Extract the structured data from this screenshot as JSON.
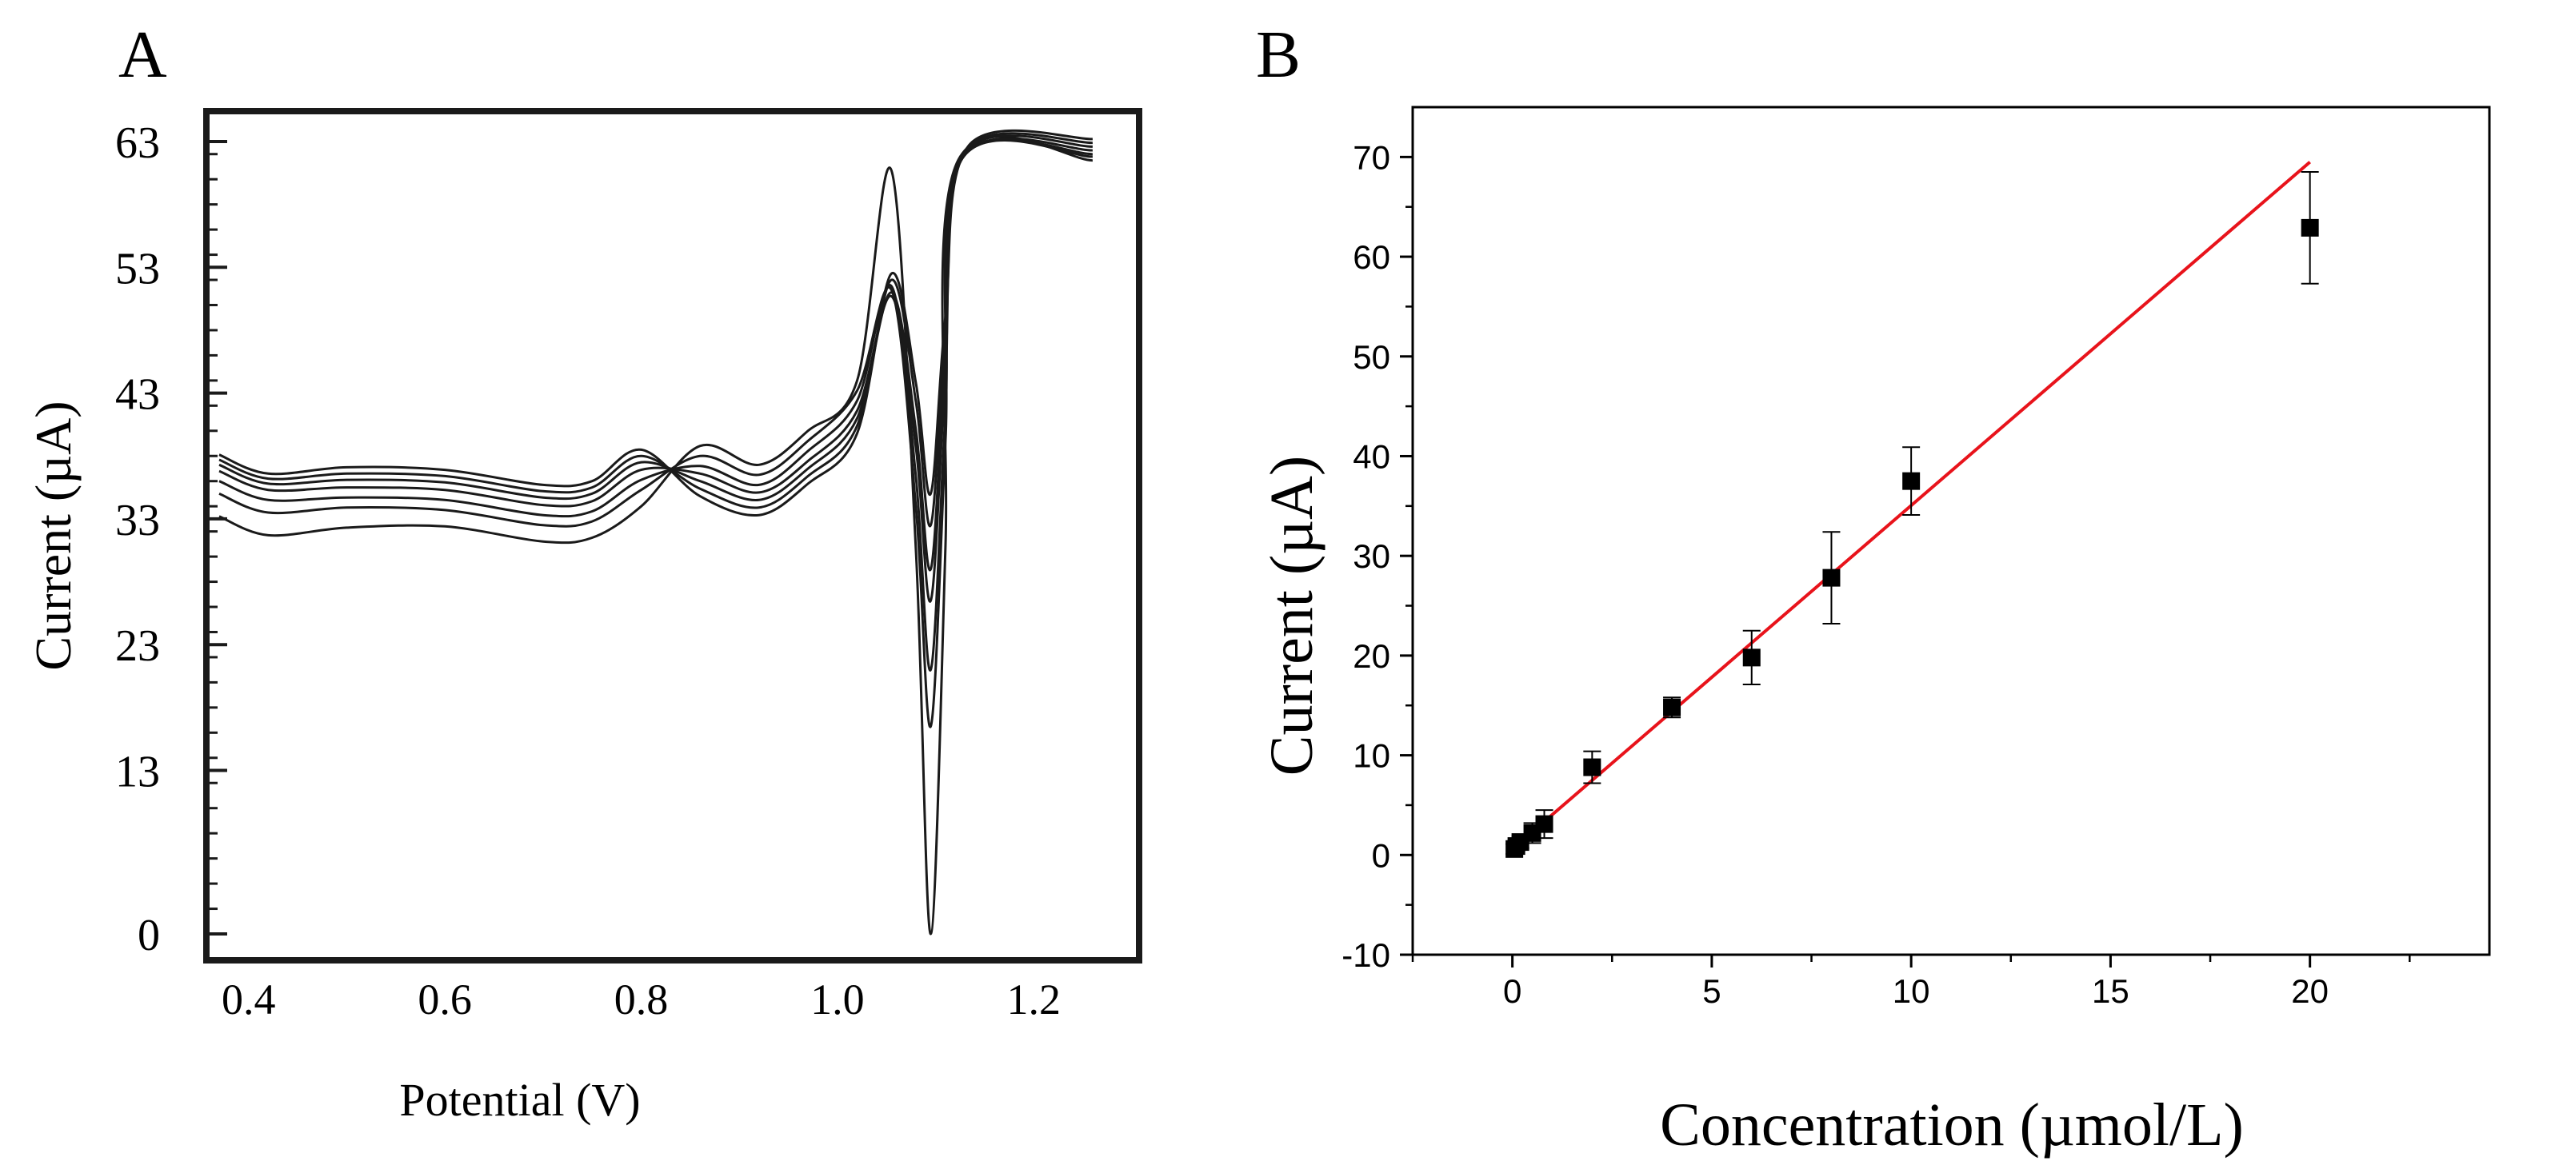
{
  "chart_data": [
    {
      "panel_label": "A",
      "type": "line",
      "title": "",
      "xlabel": "Potential (V)",
      "ylabel": "Current (µA)",
      "xlim": [
        0.37,
        1.3
      ],
      "ylim": [
        0,
        63
      ],
      "x_ticks": [
        0.4,
        0.6,
        0.8,
        1.0,
        1.2
      ],
      "x_tick_labels": [
        "0.4",
        "0.6",
        "0.8",
        "1.0",
        "1.2"
      ],
      "y_ticks": [
        0,
        13,
        23,
        33,
        43,
        53,
        63
      ],
      "y_tick_labels": [
        "0",
        "13",
        "23",
        "33",
        "43",
        "53",
        "63"
      ],
      "x_end": 1.26,
      "series": [
        {
          "name": "trace 1",
          "start": 33.2,
          "plateau": 31.5,
          "peak1": 38.8,
          "peak2": 40.0,
          "main_peak": 60.7,
          "valley": 0.0,
          "top": 61.5,
          "top_shift": 0.0
        },
        {
          "name": "trace 2",
          "start": 35.0,
          "plateau": 32.8,
          "peak1": 38.0,
          "peak2": 39.2,
          "main_peak": 51.2,
          "valley": 16.5,
          "top": 61.8,
          "top_shift": 0.004
        },
        {
          "name": "trace 3",
          "start": 36.0,
          "plateau": 33.6,
          "peak1": 37.2,
          "peak2": 38.4,
          "main_peak": 51.5,
          "valley": 21.0,
          "top": 62.0,
          "top_shift": 0.006
        },
        {
          "name": "trace 4",
          "start": 36.8,
          "plateau": 34.4,
          "peak1": 36.6,
          "peak2": 37.6,
          "main_peak": 50.7,
          "valley": 26.5,
          "top": 62.3,
          "top_shift": 0.008
        },
        {
          "name": "trace 5",
          "start": 37.3,
          "plateau": 35.0,
          "peak1": 36.0,
          "peak2": 37.0,
          "main_peak": 51.0,
          "valley": 29.0,
          "top": 62.6,
          "top_shift": 0.01
        },
        {
          "name": "trace 6",
          "start": 37.7,
          "plateau": 35.5,
          "peak1": 35.4,
          "peak2": 36.4,
          "main_peak": 52.0,
          "valley": 32.5,
          "top": 62.9,
          "top_shift": 0.012
        },
        {
          "name": "trace 7",
          "start": 38.1,
          "plateau": 36.0,
          "peak1": 34.8,
          "peak2": 35.8,
          "main_peak": 52.5,
          "valley": 35.0,
          "top": 63.2,
          "top_shift": 0.014
        }
      ]
    },
    {
      "panel_label": "B",
      "type": "scatter",
      "title": "",
      "xlabel": "Concentration (µmol/L)",
      "ylabel": "Current (µA)",
      "xlim": [
        -2.5,
        24.5
      ],
      "ylim": [
        -10,
        75
      ],
      "x_ticks": [
        0,
        5,
        10,
        15,
        20
      ],
      "x_tick_labels": [
        "0",
        "5",
        "10",
        "15",
        "20"
      ],
      "y_ticks": [
        -10,
        0,
        10,
        20,
        30,
        40,
        50,
        60,
        70
      ],
      "y_tick_labels": [
        "-10",
        "0",
        "10",
        "20",
        "30",
        "40",
        "50",
        "60",
        "70"
      ],
      "points": {
        "x": [
          0.05,
          0.1,
          0.2,
          0.5,
          0.8,
          2,
          4,
          6,
          8,
          10,
          20
        ],
        "y": [
          0.6,
          0.9,
          1.3,
          2.2,
          3.1,
          8.8,
          14.8,
          19.8,
          27.8,
          37.5,
          62.9
        ],
        "err": [
          0.5,
          0.5,
          0.6,
          1.0,
          1.4,
          1.6,
          1.0,
          2.7,
          4.6,
          3.4,
          5.6
        ]
      },
      "fit_line": {
        "color": "#e8131b",
        "x": [
          0,
          20
        ],
        "y": [
          0.6,
          69.5
        ]
      }
    }
  ]
}
